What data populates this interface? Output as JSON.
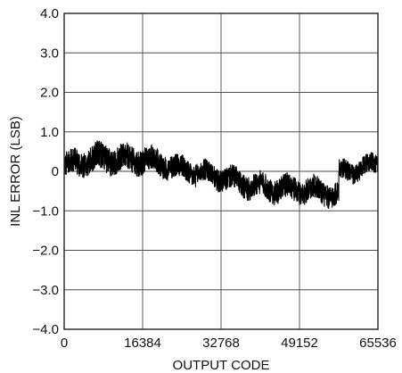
{
  "chart_data": {
    "type": "line",
    "title": "",
    "xlabel": "OUTPUT CODE",
    "ylabel": "INL ERROR (LSB)",
    "xlim": [
      0,
      65536
    ],
    "ylim": [
      -4.0,
      4.0
    ],
    "x_ticks": [
      0,
      16384,
      32768,
      49152,
      65536
    ],
    "x_tick_labels": [
      "0",
      "16384",
      "32768",
      "49152",
      "65536"
    ],
    "y_ticks": [
      4.0,
      3.0,
      2.0,
      1.0,
      0,
      -1.0,
      -2.0,
      -3.0,
      -4.0
    ],
    "y_tick_labels": [
      "4.0",
      "3.0",
      "2.0",
      "1.0",
      "0",
      "−1.0",
      "−2.0",
      "−3.0",
      "−4.0"
    ],
    "grid": true,
    "line_color": "#000000",
    "series": [
      {
        "x": [
          0,
          4096,
          8192,
          12288,
          16384,
          20480,
          24576,
          28672,
          32768,
          36864,
          40960,
          45056,
          49152,
          53248,
          57344,
          57400,
          61440,
          65536
        ],
        "y": [
          0.15,
          0.25,
          0.35,
          0.3,
          0.3,
          0.2,
          0.05,
          -0.05,
          -0.15,
          -0.3,
          -0.4,
          -0.45,
          -0.45,
          -0.5,
          -0.6,
          -0.05,
          0.05,
          0.2
        ],
        "band": [
          0.6,
          0.65,
          0.7,
          0.65,
          0.65,
          0.6,
          0.6,
          0.55,
          0.55,
          0.6,
          0.6,
          0.6,
          0.6,
          0.6,
          0.6,
          0.5,
          0.5,
          0.45
        ]
      }
    ]
  }
}
